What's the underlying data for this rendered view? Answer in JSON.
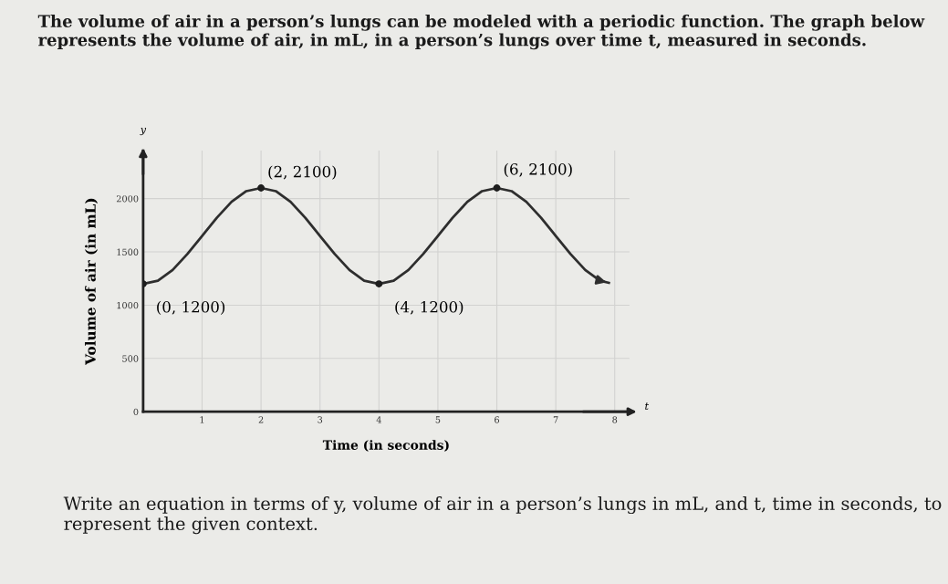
{
  "chart_data": {
    "type": "line",
    "title": "The volume of air in a person’s lungs can be modeled with a periodic function. The graph below represents the volume of air, in mL, in a person’s lungs over time t, measured in seconds.",
    "xlabel": "Time (in seconds)",
    "ylabel": "Volume of air (in mL)",
    "series": [
      {
        "color": "#2e2e2e",
        "x": [
          0,
          0.25,
          0.5,
          0.75,
          1,
          1.25,
          1.5,
          1.75,
          2,
          2.25,
          2.5,
          2.75,
          3,
          3.25,
          3.5,
          3.75,
          4,
          4.25,
          4.5,
          4.75,
          5,
          5.25,
          5.5,
          5.75,
          6,
          6.25,
          6.5,
          6.75,
          7,
          7.25,
          7.5,
          7.75,
          7.9
        ],
        "values": [
          1200,
          1230,
          1330,
          1480,
          1650,
          1820,
          1970,
          2070,
          2100,
          2070,
          1970,
          1820,
          1650,
          1480,
          1330,
          1230,
          1200,
          1230,
          1330,
          1480,
          1650,
          1820,
          1970,
          2070,
          2100,
          2070,
          1970,
          1820,
          1650,
          1480,
          1330,
          1230,
          1210
        ]
      },
      {
        "type": "scatter",
        "color": "#1e1e1e",
        "x": [
          0,
          2,
          4,
          6
        ],
        "values": [
          1200,
          2100,
          1200,
          2100
        ],
        "marker": "circle"
      }
    ],
    "annotations": [
      {
        "text": "(0, 1200)",
        "x": 0,
        "y": 1200
      },
      {
        "text": "(2, 2100)",
        "x": 2,
        "y": 2100
      },
      {
        "text": "(4, 1200)",
        "x": 4,
        "y": 1200
      },
      {
        "text": "(6, 2100)",
        "x": 6,
        "y": 2100
      },
      "y",
      "t",
      "Write an equation in terms of y, volume of air in a person’s lungs in mL, and t, time in seconds, to represent the given context."
    ],
    "xlim": [
      0,
      8.25
    ],
    "ylim": [
      0,
      2450
    ],
    "xticks": [
      {
        "value": 0,
        "label": null
      },
      1,
      2,
      3,
      4,
      5,
      6,
      7,
      8
    ],
    "yticks": [
      0,
      500,
      1000,
      1500,
      2000
    ],
    "grid": true,
    "marker": "none",
    "line_style": "solid"
  }
}
